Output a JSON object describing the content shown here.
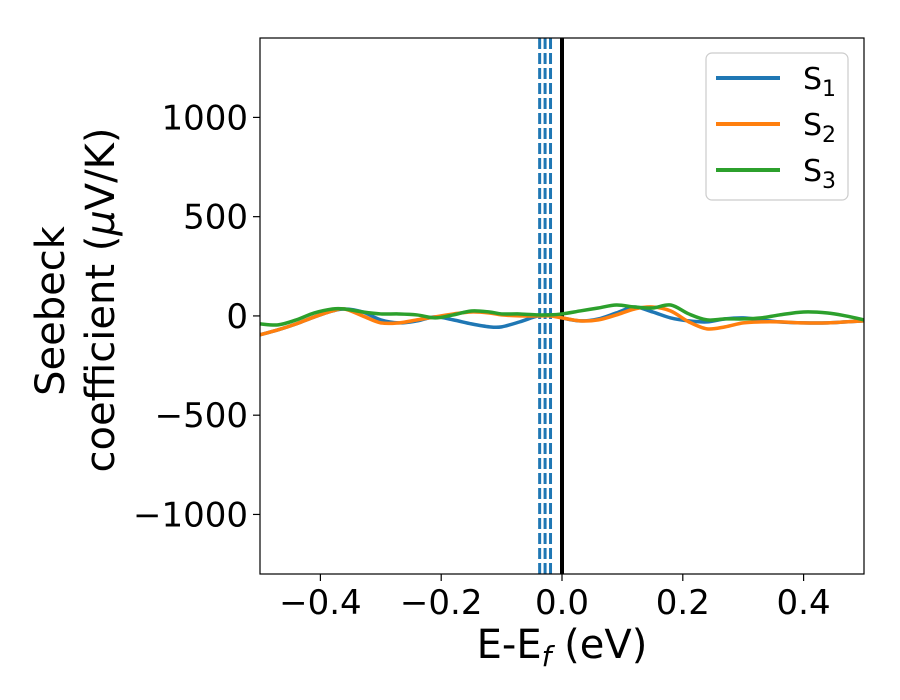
{
  "chart_data": {
    "type": "line",
    "xlabel": "E-E",
    "xlabel_sub": "f",
    "xlabel_unit": " (eV)",
    "ylabel_line1": "Seebeck",
    "ylabel_line2": "coefficient  (",
    "ylabel_mu": "μ",
    "ylabel_tail": "V/K)",
    "xlim": [
      -0.5,
      0.5
    ],
    "ylim": [
      -1300,
      1400
    ],
    "xticks": [
      -0.4,
      -0.2,
      0.0,
      0.2,
      0.4
    ],
    "xtick_labels": [
      "−0.4",
      "−0.2",
      "0.0",
      "0.2",
      "0.4"
    ],
    "yticks": [
      -1000,
      -500,
      0,
      500,
      1000
    ],
    "ytick_labels": [
      "−1000",
      "−500",
      "0",
      "500",
      "1000"
    ],
    "grid": false,
    "legend_position": "top-right",
    "fermi_line": {
      "x": 0.0,
      "color": "#000000"
    },
    "band_edge_lines": {
      "x": [
        -0.037,
        -0.028,
        -0.019
      ],
      "color": "#1f77b4",
      "style": "dashed"
    },
    "series": [
      {
        "name": "S",
        "name_sub": "1",
        "color": "#1f77b4",
        "x": [
          -0.5,
          -0.47,
          -0.44,
          -0.41,
          -0.38,
          -0.36,
          -0.33,
          -0.3,
          -0.27,
          -0.24,
          -0.21,
          -0.18,
          -0.15,
          -0.12,
          -0.1,
          -0.07,
          -0.04,
          -0.02,
          0.0,
          0.03,
          0.06,
          0.09,
          0.12,
          0.15,
          0.18,
          0.21,
          0.24,
          0.27,
          0.3,
          0.33,
          0.36,
          0.4,
          0.44,
          0.47,
          0.5
        ],
        "y": [
          -95,
          -70,
          -40,
          -5,
          25,
          35,
          20,
          -20,
          -35,
          -25,
          -5,
          -20,
          -40,
          -55,
          -55,
          -30,
          0,
          5,
          -10,
          -25,
          -15,
          15,
          45,
          20,
          -10,
          -25,
          -30,
          -15,
          -10,
          -20,
          -30,
          -35,
          -35,
          -30,
          -25
        ]
      },
      {
        "name": "S",
        "name_sub": "2",
        "color": "#ff7f0e",
        "x": [
          -0.5,
          -0.47,
          -0.44,
          -0.41,
          -0.38,
          -0.36,
          -0.33,
          -0.3,
          -0.27,
          -0.24,
          -0.21,
          -0.18,
          -0.15,
          -0.12,
          -0.1,
          -0.07,
          -0.04,
          -0.02,
          0.0,
          0.03,
          0.06,
          0.09,
          0.12,
          0.15,
          0.18,
          0.21,
          0.24,
          0.27,
          0.3,
          0.33,
          0.36,
          0.4,
          0.44,
          0.47,
          0.5
        ],
        "y": [
          -95,
          -70,
          -40,
          -5,
          25,
          35,
          0,
          -35,
          -35,
          -20,
          -5,
          10,
          20,
          15,
          5,
          0,
          0,
          0,
          -10,
          -25,
          -20,
          5,
          35,
          45,
          25,
          -30,
          -65,
          -55,
          -35,
          -30,
          -30,
          -35,
          -35,
          -30,
          -25
        ]
      },
      {
        "name": "S",
        "name_sub": "3",
        "color": "#2ca02c",
        "x": [
          -0.5,
          -0.47,
          -0.44,
          -0.41,
          -0.38,
          -0.36,
          -0.33,
          -0.3,
          -0.27,
          -0.24,
          -0.21,
          -0.18,
          -0.15,
          -0.12,
          -0.1,
          -0.07,
          -0.04,
          -0.02,
          0.0,
          0.03,
          0.06,
          0.09,
          0.12,
          0.15,
          0.18,
          0.21,
          0.24,
          0.27,
          0.3,
          0.33,
          0.36,
          0.4,
          0.44,
          0.47,
          0.5
        ],
        "y": [
          -40,
          -45,
          -20,
          15,
          35,
          35,
          20,
          10,
          10,
          5,
          -10,
          5,
          25,
          20,
          10,
          10,
          5,
          5,
          10,
          25,
          40,
          55,
          45,
          40,
          55,
          10,
          -20,
          -15,
          -15,
          -10,
          5,
          20,
          15,
          0,
          -20
        ]
      }
    ]
  }
}
